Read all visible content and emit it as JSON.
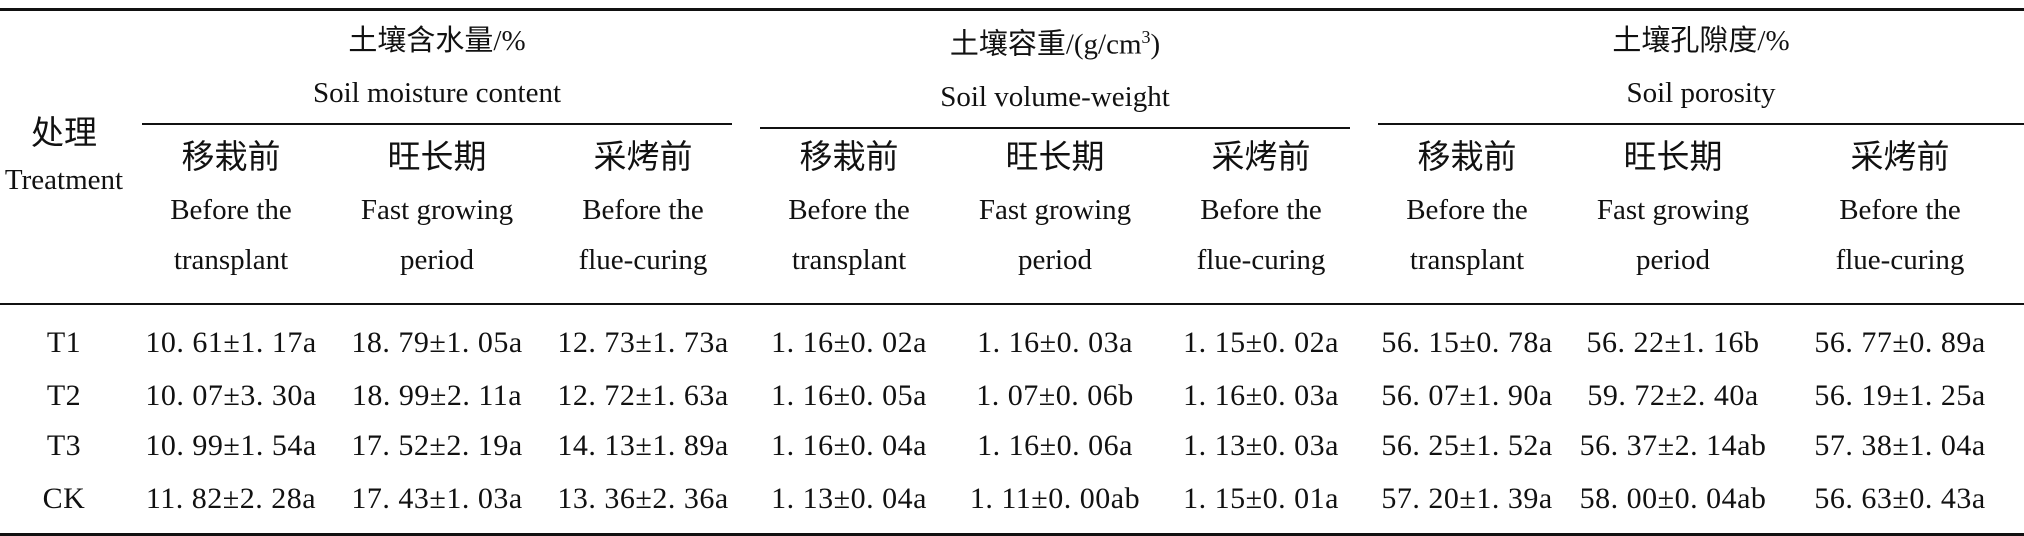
{
  "table": {
    "treatment_header": {
      "cn": "处理",
      "en": "Treatment"
    },
    "groups": [
      {
        "cn": "土壤含水量/%",
        "en": "Soil moisture content"
      },
      {
        "cn_prefix": "土壤容重/(g/cm",
        "cn_sup": "3",
        "cn_suffix": ")",
        "en": "Soil volume-weight"
      },
      {
        "cn": "土壤孔隙度/%",
        "en": "Soil porosity"
      }
    ],
    "periods": [
      {
        "cn": "移栽前",
        "en1": "Before the",
        "en2": "transplant"
      },
      {
        "cn": "旺长期",
        "en1": "Fast growing",
        "en2": "period"
      },
      {
        "cn": "采烤前",
        "en1": "Before the",
        "en2": "flue-curing"
      }
    ],
    "rows": [
      {
        "treatment": "T1",
        "values": [
          "10. 61±1. 17a",
          "18. 79±1. 05a",
          "12. 73±1. 73a",
          "1. 16±0. 02a",
          "1. 16±0. 03a",
          "1. 15±0. 02a",
          "56. 15±0. 78a",
          "56. 22±1. 16b",
          "56. 77±0. 89a"
        ]
      },
      {
        "treatment": "T2",
        "values": [
          "10. 07±3. 30a",
          "18. 99±2. 11a",
          "12. 72±1. 63a",
          "1. 16±0. 05a",
          "1. 07±0. 06b",
          "1. 16±0. 03a",
          "56. 07±1. 90a",
          "59. 72±2. 40a",
          "56. 19±1. 25a"
        ]
      },
      {
        "treatment": "T3",
        "values": [
          "10. 99±1. 54a",
          "17. 52±2. 19a",
          "14. 13±1. 89a",
          "1. 16±0. 04a",
          "1. 16±0. 06a",
          "1. 13±0. 03a",
          "56. 25±1. 52a",
          "56. 37±2. 14ab",
          "57. 38±1. 04a"
        ]
      },
      {
        "treatment": "CK",
        "values": [
          "11. 82±2. 28a",
          "17. 43±1. 03a",
          "13. 36±2. 36a",
          "1. 13±0. 04a",
          "1. 11±0. 00ab",
          "1. 15±0. 01a",
          "57. 20±1. 39a",
          "58. 00±0. 04ab",
          "56. 63±0. 43a"
        ]
      }
    ]
  }
}
